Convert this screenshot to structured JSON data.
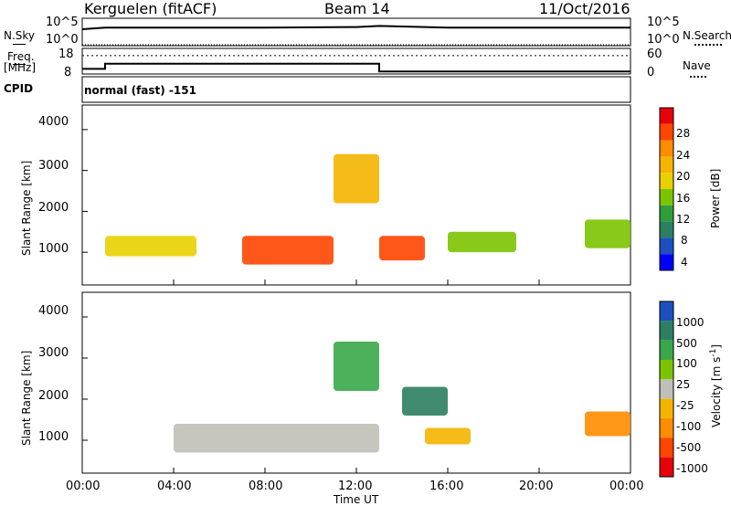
{
  "header": {
    "station": "Kerguelen (fitACF)",
    "beam": "Beam 14",
    "date": "11/Oct/2016"
  },
  "nsky_panel": {
    "left_label": "N.Sky",
    "left_ticks": [
      "10^5",
      "10^0"
    ],
    "right_ticks": [
      "10^5",
      "10^0"
    ],
    "right_label": "N.Search"
  },
  "freq_panel": {
    "left_label_1": "Freq.",
    "left_label_2": "[MHz]",
    "left_ticks": [
      "18",
      "8"
    ],
    "right_ticks": [
      "60",
      "0"
    ],
    "right_label": "Nave"
  },
  "cpid_panel": {
    "label": "CPID",
    "text": "normal (fast) -151"
  },
  "time_axis": {
    "ticks": [
      "00:00",
      "04:00",
      "08:00",
      "12:00",
      "16:00",
      "20:00",
      "00:00"
    ],
    "label": "Time UT"
  },
  "power_panel": {
    "ylabel": "Slant Range [km]",
    "yticks": [
      "4000",
      "3000",
      "2000",
      "1000"
    ],
    "colorbar_label": "Power [dB]",
    "colorbar_ticks": [
      "28",
      "24",
      "20",
      "16",
      "12",
      "8",
      "4"
    ],
    "colorbar_colors": [
      "#e8000b",
      "#ff4500",
      "#ff8c00",
      "#f4b400",
      "#e8d000",
      "#7cc300",
      "#2f9e3a",
      "#2c7f62",
      "#1f4fbf",
      "#0000ff"
    ]
  },
  "velocity_panel": {
    "ylabel": "Slant Range [km]",
    "yticks": [
      "4000",
      "3000",
      "2000",
      "1000"
    ],
    "colorbar_label": "Velocity [m s",
    "colorbar_label_sup": "-1",
    "colorbar_label_end": "]",
    "colorbar_ticks": [
      "1000",
      "500",
      "100",
      "25",
      "-25",
      "-100",
      "-500",
      "-1000"
    ],
    "colorbar_colors": [
      "#1f4fbf",
      "#2c7f62",
      "#3aa84a",
      "#7cc300",
      "#c0c0b8",
      "#f4b400",
      "#ff8c00",
      "#ff4500",
      "#e8000b"
    ]
  },
  "chart_data": [
    {
      "type": "line",
      "title": "N.Sky / N.Search",
      "x": [
        "00:00",
        "01:00",
        "04:00",
        "08:00",
        "12:00",
        "13:00",
        "16:00",
        "20:00",
        "24:00"
      ],
      "series": [
        {
          "name": "N.Sky",
          "values": [
            3.0,
            3.3,
            3.3,
            3.3,
            3.4,
            3.6,
            3.3,
            3.3,
            3.3
          ]
        },
        {
          "name": "N.Search",
          "values": [
            0,
            0,
            0,
            0,
            0,
            0,
            0,
            0,
            0
          ]
        }
      ],
      "ylim": [
        0,
        5
      ]
    },
    {
      "type": "line",
      "title": "Freq. / Nave",
      "x": [
        "00:00",
        "01:00",
        "13:00",
        "24:00"
      ],
      "series": [
        {
          "name": "Freq. [MHz]",
          "values": [
            10,
            12,
            9,
            9
          ]
        },
        {
          "name": "Nave",
          "values": [
            43,
            43,
            43,
            43
          ]
        }
      ]
    },
    {
      "type": "heatmap",
      "title": "Power [dB]",
      "xlabel": "Time UT",
      "ylabel": "Slant Range [km]",
      "xlim": [
        "00:00",
        "24:00"
      ],
      "ylim": [
        200,
        4600
      ],
      "colorbar_range": [
        0,
        30
      ],
      "regions": [
        {
          "time": [
            "07:00",
            "11:00"
          ],
          "range_km": [
            700,
            1400
          ],
          "power_db": 26
        },
        {
          "time": [
            "13:00",
            "15:00"
          ],
          "range_km": [
            800,
            1400
          ],
          "power_db": 27
        },
        {
          "time": [
            "01:00",
            "05:00"
          ],
          "range_km": [
            900,
            1400
          ],
          "power_db": 18
        },
        {
          "time": [
            "11:00",
            "13:00"
          ],
          "range_km": [
            2200,
            3400
          ],
          "power_db": 20
        },
        {
          "time": [
            "16:00",
            "19:00"
          ],
          "range_km": [
            1000,
            1500
          ],
          "power_db": 14
        },
        {
          "time": [
            "22:00",
            "24:00"
          ],
          "range_km": [
            1100,
            1800
          ],
          "power_db": 14
        }
      ]
    },
    {
      "type": "heatmap",
      "title": "Velocity [m s-1]",
      "xlabel": "Time UT",
      "ylabel": "Slant Range [km]",
      "xlim": [
        "00:00",
        "24:00"
      ],
      "ylim": [
        200,
        4600
      ],
      "colorbar_range": [
        -1000,
        1000
      ],
      "regions": [
        {
          "time": [
            "04:00",
            "13:00"
          ],
          "range_km": [
            700,
            1400
          ],
          "velocity": 0
        },
        {
          "time": [
            "15:00",
            "17:00"
          ],
          "range_km": [
            900,
            1300
          ],
          "velocity": -100
        },
        {
          "time": [
            "11:00",
            "13:00"
          ],
          "range_km": [
            2200,
            3400
          ],
          "velocity": 100
        },
        {
          "time": [
            "14:00",
            "16:00"
          ],
          "range_km": [
            1600,
            2300
          ],
          "velocity": 500
        },
        {
          "time": [
            "22:00",
            "24:00"
          ],
          "range_km": [
            1100,
            1700
          ],
          "velocity": -500
        }
      ]
    }
  ]
}
